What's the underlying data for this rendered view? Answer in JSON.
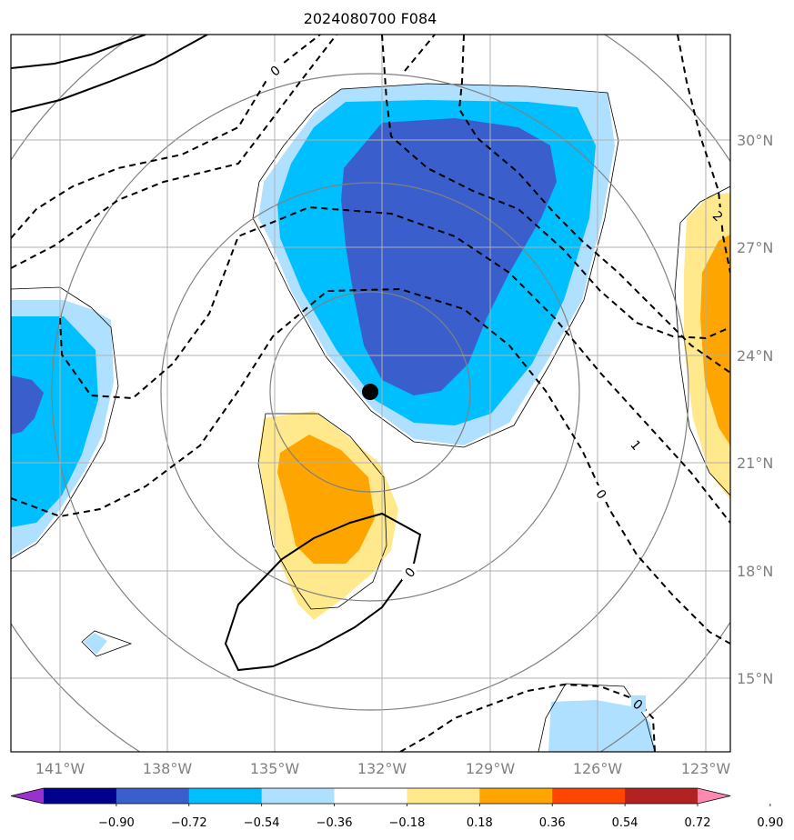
{
  "title": "2024080700 F084",
  "map": {
    "lon_ticks": [
      "141°W",
      "138°W",
      "135°W",
      "132°W",
      "129°W",
      "126°W",
      "123°W"
    ],
    "lat_ticks": [
      "30°N",
      "27°N",
      "24°N",
      "21°N",
      "18°N",
      "15°N"
    ],
    "contour_labels": [
      "0",
      "2",
      "1",
      "0",
      "0",
      "0"
    ],
    "center_marker": "storm-center"
  },
  "colorbar": {
    "tick_labels": [
      "−0.90",
      "−0.72",
      "−0.54",
      "−0.36",
      "−0.18",
      "0.18",
      "0.36",
      "0.54",
      "0.72",
      "0.90"
    ],
    "colors": [
      "#9932cc",
      "#00008b",
      "#3a5fcd",
      "#00bfff",
      "#b0e0ff",
      "#ffffff",
      "#ffe98c",
      "#ffa500",
      "#ff4500",
      "#b22222",
      "#ff88b0"
    ]
  },
  "shading_colors": {
    "neg_deep": "#3a5fcd",
    "neg_mid": "#00bfff",
    "neg_light": "#b0e0ff",
    "pos_light": "#ffe98c",
    "pos_mid": "#ffa500"
  }
}
